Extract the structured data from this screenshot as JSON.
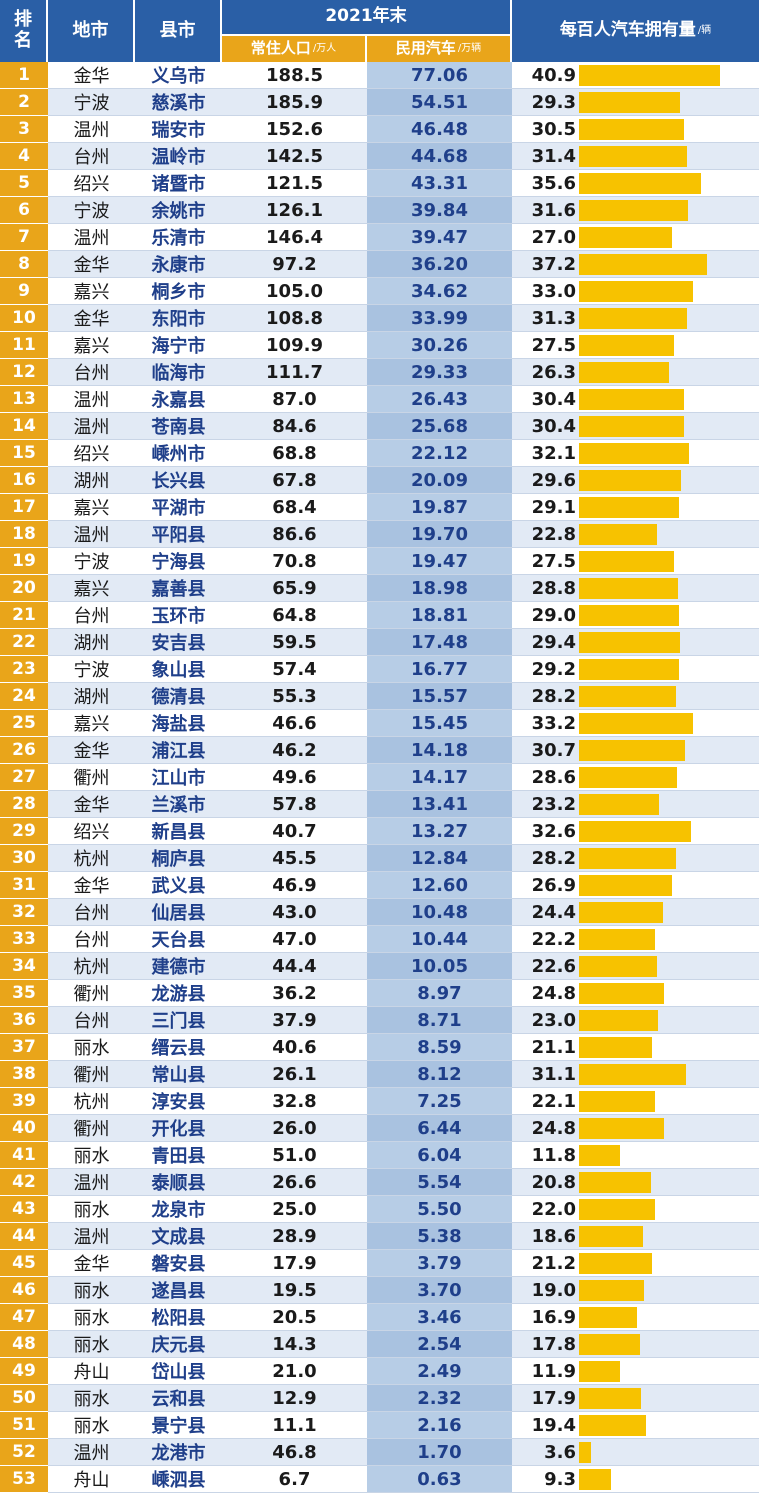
{
  "header": {
    "rank": [
      "排",
      "名"
    ],
    "city": "地市",
    "county": "县市",
    "year": "2021年末",
    "population": "常住人口",
    "population_unit": "/万人",
    "cars": "民用汽车",
    "cars_unit": "/万辆",
    "per_hundred": "每百人汽车拥有量",
    "per_hundred_unit": "/辆"
  },
  "colors": {
    "header_blue": "#2a5fa6",
    "header_orange": "#e9a51a",
    "bar": "#f7c200"
  },
  "chart_data": {
    "type": "table",
    "columns": [
      "排名",
      "地市",
      "县市",
      "常住人口/万人",
      "民用汽车/万辆",
      "每百人汽车拥有量/辆"
    ],
    "bar_column": "每百人汽车拥有量/辆",
    "rows": [
      [
        "1",
        "金华",
        "义乌市",
        "188.5",
        "77.06",
        "40.9"
      ],
      [
        "2",
        "宁波",
        "慈溪市",
        "185.9",
        "54.51",
        "29.3"
      ],
      [
        "3",
        "温州",
        "瑞安市",
        "152.6",
        "46.48",
        "30.5"
      ],
      [
        "4",
        "台州",
        "温岭市",
        "142.5",
        "44.68",
        "31.4"
      ],
      [
        "5",
        "绍兴",
        "诸暨市",
        "121.5",
        "43.31",
        "35.6"
      ],
      [
        "6",
        "宁波",
        "余姚市",
        "126.1",
        "39.84",
        "31.6"
      ],
      [
        "7",
        "温州",
        "乐清市",
        "146.4",
        "39.47",
        "27.0"
      ],
      [
        "8",
        "金华",
        "永康市",
        "97.2",
        "36.20",
        "37.2"
      ],
      [
        "9",
        "嘉兴",
        "桐乡市",
        "105.0",
        "34.62",
        "33.0"
      ],
      [
        "10",
        "金华",
        "东阳市",
        "108.8",
        "33.99",
        "31.3"
      ],
      [
        "11",
        "嘉兴",
        "海宁市",
        "109.9",
        "30.26",
        "27.5"
      ],
      [
        "12",
        "台州",
        "临海市",
        "111.7",
        "29.33",
        "26.3"
      ],
      [
        "13",
        "温州",
        "永嘉县",
        "87.0",
        "26.43",
        "30.4"
      ],
      [
        "14",
        "温州",
        "苍南县",
        "84.6",
        "25.68",
        "30.4"
      ],
      [
        "15",
        "绍兴",
        "嵊州市",
        "68.8",
        "22.12",
        "32.1"
      ],
      [
        "16",
        "湖州",
        "长兴县",
        "67.8",
        "20.09",
        "29.6"
      ],
      [
        "17",
        "嘉兴",
        "平湖市",
        "68.4",
        "19.87",
        "29.1"
      ],
      [
        "18",
        "温州",
        "平阳县",
        "86.6",
        "19.70",
        "22.8"
      ],
      [
        "19",
        "宁波",
        "宁海县",
        "70.8",
        "19.47",
        "27.5"
      ],
      [
        "20",
        "嘉兴",
        "嘉善县",
        "65.9",
        "18.98",
        "28.8"
      ],
      [
        "21",
        "台州",
        "玉环市",
        "64.8",
        "18.81",
        "29.0"
      ],
      [
        "22",
        "湖州",
        "安吉县",
        "59.5",
        "17.48",
        "29.4"
      ],
      [
        "23",
        "宁波",
        "象山县",
        "57.4",
        "16.77",
        "29.2"
      ],
      [
        "24",
        "湖州",
        "德清县",
        "55.3",
        "15.57",
        "28.2"
      ],
      [
        "25",
        "嘉兴",
        "海盐县",
        "46.6",
        "15.45",
        "33.2"
      ],
      [
        "26",
        "金华",
        "浦江县",
        "46.2",
        "14.18",
        "30.7"
      ],
      [
        "27",
        "衢州",
        "江山市",
        "49.6",
        "14.17",
        "28.6"
      ],
      [
        "28",
        "金华",
        "兰溪市",
        "57.8",
        "13.41",
        "23.2"
      ],
      [
        "29",
        "绍兴",
        "新昌县",
        "40.7",
        "13.27",
        "32.6"
      ],
      [
        "30",
        "杭州",
        "桐庐县",
        "45.5",
        "12.84",
        "28.2"
      ],
      [
        "31",
        "金华",
        "武义县",
        "46.9",
        "12.60",
        "26.9"
      ],
      [
        "32",
        "台州",
        "仙居县",
        "43.0",
        "10.48",
        "24.4"
      ],
      [
        "33",
        "台州",
        "天台县",
        "47.0",
        "10.44",
        "22.2"
      ],
      [
        "34",
        "杭州",
        "建德市",
        "44.4",
        "10.05",
        "22.6"
      ],
      [
        "35",
        "衢州",
        "龙游县",
        "36.2",
        "8.97",
        "24.8"
      ],
      [
        "36",
        "台州",
        "三门县",
        "37.9",
        "8.71",
        "23.0"
      ],
      [
        "37",
        "丽水",
        "缙云县",
        "40.6",
        "8.59",
        "21.1"
      ],
      [
        "38",
        "衢州",
        "常山县",
        "26.1",
        "8.12",
        "31.1"
      ],
      [
        "39",
        "杭州",
        "淳安县",
        "32.8",
        "7.25",
        "22.1"
      ],
      [
        "40",
        "衢州",
        "开化县",
        "26.0",
        "6.44",
        "24.8"
      ],
      [
        "41",
        "丽水",
        "青田县",
        "51.0",
        "6.04",
        "11.8"
      ],
      [
        "42",
        "温州",
        "泰顺县",
        "26.6",
        "5.54",
        "20.8"
      ],
      [
        "43",
        "丽水",
        "龙泉市",
        "25.0",
        "5.50",
        "22.0"
      ],
      [
        "44",
        "温州",
        "文成县",
        "28.9",
        "5.38",
        "18.6"
      ],
      [
        "45",
        "金华",
        "磐安县",
        "17.9",
        "3.79",
        "21.2"
      ],
      [
        "46",
        "丽水",
        "遂昌县",
        "19.5",
        "3.70",
        "19.0"
      ],
      [
        "47",
        "丽水",
        "松阳县",
        "20.5",
        "3.46",
        "16.9"
      ],
      [
        "48",
        "丽水",
        "庆元县",
        "14.3",
        "2.54",
        "17.8"
      ],
      [
        "49",
        "舟山",
        "岱山县",
        "21.0",
        "2.49",
        "11.9"
      ],
      [
        "50",
        "丽水",
        "云和县",
        "12.9",
        "2.32",
        "17.9"
      ],
      [
        "51",
        "丽水",
        "景宁县",
        "11.1",
        "2.16",
        "19.4"
      ],
      [
        "52",
        "温州",
        "龙港市",
        "46.8",
        "1.70",
        "3.6"
      ],
      [
        "53",
        "舟山",
        "嵊泗县",
        "6.7",
        "0.63",
        "9.3"
      ]
    ]
  }
}
